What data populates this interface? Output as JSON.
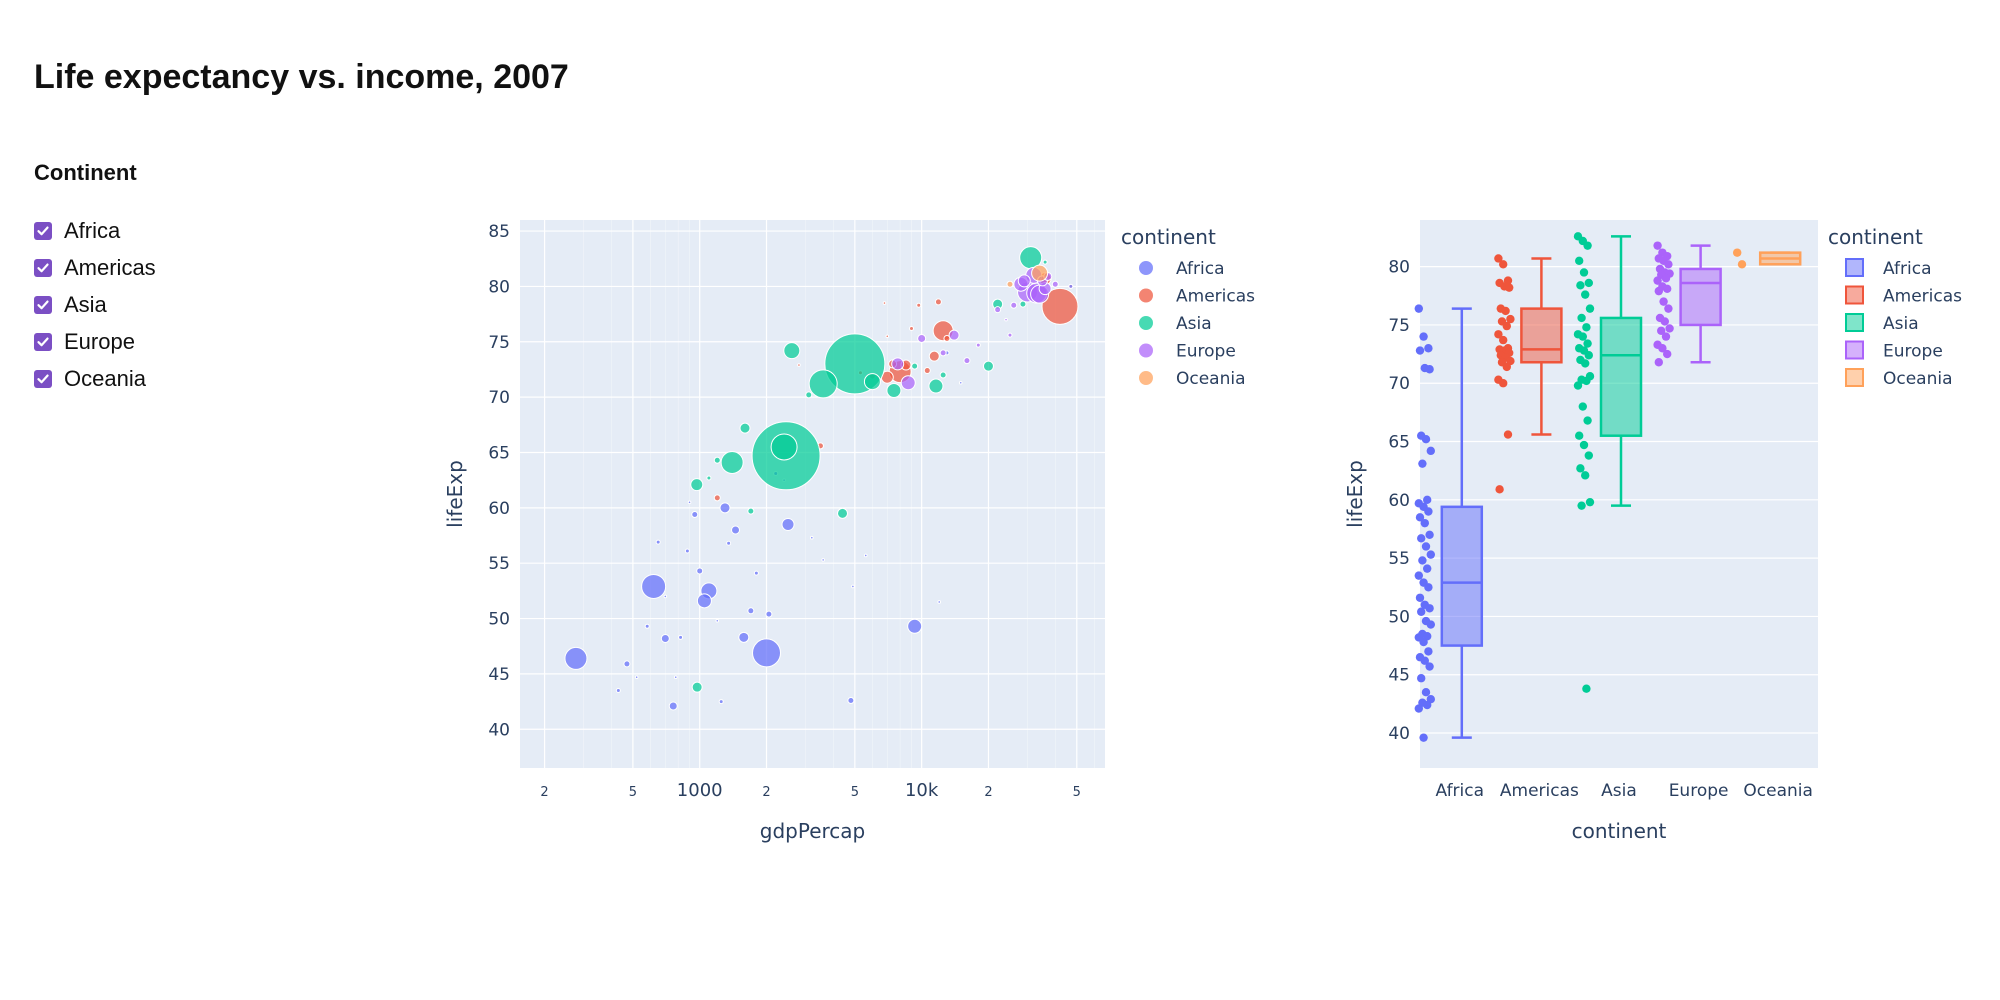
{
  "page": {
    "title": "Life expectancy vs. income, 2007"
  },
  "filter": {
    "heading": "Continent",
    "options": [
      {
        "label": "Africa",
        "checked": true
      },
      {
        "label": "Americas",
        "checked": true
      },
      {
        "label": "Asia",
        "checked": true
      },
      {
        "label": "Europe",
        "checked": true
      },
      {
        "label": "Oceania",
        "checked": true
      }
    ],
    "checkbox_color": "#7b4fc4"
  },
  "chart_data": [
    {
      "type": "scatter",
      "xlabel": "gdpPercap",
      "ylabel": "lifeExp",
      "x_scale": "log",
      "xlim": [
        155,
        67000
      ],
      "ylim": [
        36.5,
        86
      ],
      "x_ticks": [
        {
          "value": 200,
          "label": "2"
        },
        {
          "value": 500,
          "label": "5"
        },
        {
          "value": 1000,
          "label": "1000"
        },
        {
          "value": 2000,
          "label": "2"
        },
        {
          "value": 5000,
          "label": "5"
        },
        {
          "value": 10000,
          "label": "10k"
        },
        {
          "value": 20000,
          "label": "2"
        },
        {
          "value": 50000,
          "label": "5"
        }
      ],
      "y_ticks": [
        40,
        45,
        50,
        55,
        60,
        65,
        70,
        75,
        80,
        85
      ],
      "legend_title": "continent",
      "legend_position": "right",
      "grid": true,
      "series": [
        {
          "name": "Africa",
          "color": "#636efa",
          "points": [
            [
              277,
              46.4,
              11
            ],
            [
              580,
              49.3,
              2
            ],
            [
              430,
              43.5,
              2
            ],
            [
              520,
              44.7,
              1
            ],
            [
              470,
              45.9,
              3
            ],
            [
              620,
              52.9,
              12
            ],
            [
              700,
              48.2,
              4
            ],
            [
              760,
              42.1,
              4
            ],
            [
              820,
              48.3,
              2
            ],
            [
              880,
              56.1,
              2
            ],
            [
              950,
              59.4,
              3
            ],
            [
              1000,
              54.3,
              3
            ],
            [
              1050,
              51.6,
              7
            ],
            [
              1100,
              52.5,
              8
            ],
            [
              1250,
              42.5,
              2
            ],
            [
              1300,
              60.0,
              5
            ],
            [
              1350,
              56.8,
              2
            ],
            [
              1450,
              58.0,
              4
            ],
            [
              1580,
              48.3,
              5
            ],
            [
              1700,
              50.7,
              3
            ],
            [
              2000,
              46.9,
              14
            ],
            [
              2050,
              50.4,
              3
            ],
            [
              2200,
              63.1,
              2
            ],
            [
              2500,
              58.5,
              6
            ],
            [
              3600,
              55.3,
              1
            ],
            [
              4800,
              42.6,
              3
            ],
            [
              4900,
              52.9,
              1
            ],
            [
              5600,
              55.7,
              1
            ],
            [
              9300,
              49.3,
              7
            ],
            [
              12000,
              51.5,
              1
            ],
            [
              13000,
              74.0,
              2
            ],
            [
              15000,
              71.3,
              1
            ],
            [
              700,
              52.0,
              1
            ],
            [
              1200,
              49.8,
              1
            ],
            [
              1800,
              54.1,
              2
            ],
            [
              2400,
              62.5,
              1
            ],
            [
              3200,
              57.3,
              1
            ],
            [
              650,
              56.9,
              2
            ],
            [
              780,
              44.7,
              1
            ],
            [
              900,
              60.5,
              1
            ]
          ]
        },
        {
          "name": "Americas",
          "color": "#ef553b",
          "points": [
            [
              1200,
              60.9,
              3
            ],
            [
              3500,
              65.6,
              3
            ],
            [
              5300,
              72.2,
              2
            ],
            [
              6000,
              71.9,
              3
            ],
            [
              7000,
              71.8,
              6
            ],
            [
              7400,
              73.0,
              4
            ],
            [
              8000,
              72.3,
              11
            ],
            [
              8500,
              72.9,
              5
            ],
            [
              9000,
              76.2,
              2
            ],
            [
              10600,
              72.4,
              3
            ],
            [
              11400,
              73.7,
              5
            ],
            [
              12500,
              76.0,
              10
            ],
            [
              13000,
              75.3,
              3
            ],
            [
              7000,
              75.5,
              1
            ],
            [
              9700,
              78.3,
              2
            ],
            [
              11900,
              78.6,
              3
            ],
            [
              36000,
              80.7,
              6
            ],
            [
              42000,
              78.2,
              18
            ],
            [
              2800,
              72.9,
              1
            ],
            [
              6800,
              78.5,
              1
            ]
          ]
        },
        {
          "name": "Asia",
          "color": "#00cc96",
          "points": [
            [
              974,
              43.8,
              5
            ],
            [
              2450,
              64.7,
              34
            ],
            [
              5000,
              73.0,
              30
            ],
            [
              3100,
              70.2,
              3
            ],
            [
              2600,
              74.2,
              8
            ],
            [
              3600,
              71.2,
              14
            ],
            [
              1400,
              64.1,
              11
            ],
            [
              1200,
              64.3,
              3
            ],
            [
              6000,
              71.4,
              8
            ],
            [
              7500,
              70.6,
              7
            ],
            [
              11600,
              71.0,
              7
            ],
            [
              12500,
              72.0,
              3
            ],
            [
              20000,
              72.8,
              5
            ],
            [
              31000,
              82.6,
              11
            ],
            [
              28600,
              78.4,
              3
            ],
            [
              36000,
              82.2,
              2
            ],
            [
              47000,
              80.0,
              2
            ],
            [
              1600,
              67.2,
              5
            ],
            [
              970,
              62.1,
              6
            ],
            [
              1100,
              62.7,
              2
            ],
            [
              4400,
              59.5,
              5
            ],
            [
              2400,
              65.5,
              13
            ],
            [
              1700,
              59.7,
              3
            ],
            [
              9300,
              72.8,
              3
            ],
            [
              22000,
              78.4,
              5
            ]
          ]
        },
        {
          "name": "Europe",
          "color": "#ab63fa",
          "points": [
            [
              8700,
              71.3,
              7
            ],
            [
              10000,
              75.3,
              4
            ],
            [
              14000,
              75.6,
              5
            ],
            [
              16000,
              73.3,
              3
            ],
            [
              18000,
              74.7,
              2
            ],
            [
              22000,
              77.9,
              3
            ],
            [
              25000,
              75.6,
              2
            ],
            [
              26000,
              78.3,
              3
            ],
            [
              28000,
              80.2,
              7
            ],
            [
              30000,
              79.5,
              10
            ],
            [
              33000,
              79.4,
              10
            ],
            [
              35000,
              80.5,
              5
            ],
            [
              36000,
              79.8,
              6
            ],
            [
              37000,
              80.9,
              4
            ],
            [
              40000,
              80.2,
              3
            ],
            [
              47000,
              80.0,
              2
            ],
            [
              32000,
              81.0,
              8
            ],
            [
              29000,
              80.5,
              6
            ],
            [
              34000,
              79.3,
              9
            ],
            [
              12500,
              74.0,
              3
            ],
            [
              7800,
              73.0,
              6
            ],
            [
              24000,
              77.0,
              1
            ]
          ]
        },
        {
          "name": "Oceania",
          "color": "#ffa15a",
          "points": [
            [
              34000,
              81.2,
              8
            ],
            [
              25000,
              80.2,
              3
            ]
          ]
        }
      ]
    },
    {
      "type": "box",
      "xlabel": "continent",
      "ylabel": "lifeExp",
      "ylim": [
        37,
        84
      ],
      "y_ticks": [
        40,
        45,
        50,
        55,
        60,
        65,
        70,
        75,
        80
      ],
      "legend_title": "continent",
      "legend_position": "right",
      "grid": true,
      "categories": [
        "Africa",
        "Americas",
        "Asia",
        "Europe",
        "Oceania"
      ],
      "series": [
        {
          "name": "Africa",
          "color": "#636efa",
          "min": 39.6,
          "q1": 47.5,
          "median": 52.9,
          "q3": 59.4,
          "max": 76.4,
          "points": [
            76.4,
            74.0,
            73.0,
            72.8,
            71.3,
            71.2,
            65.5,
            65.2,
            64.2,
            63.1,
            60.0,
            59.7,
            59.4,
            59.0,
            58.5,
            58.0,
            57.0,
            56.7,
            56.0,
            55.3,
            54.8,
            54.1,
            53.5,
            52.9,
            52.5,
            51.6,
            51.0,
            50.7,
            50.4,
            49.6,
            49.3,
            48.5,
            48.3,
            48.2,
            47.8,
            47.0,
            46.5,
            46.2,
            45.7,
            44.7,
            43.5,
            42.9,
            42.6,
            42.4,
            42.1,
            39.6
          ]
        },
        {
          "name": "Americas",
          "color": "#ef553b",
          "min": 65.6,
          "q1": 71.8,
          "median": 72.9,
          "q3": 76.4,
          "max": 80.7,
          "points": [
            80.7,
            80.2,
            78.8,
            78.6,
            78.3,
            78.2,
            76.4,
            76.2,
            75.5,
            75.3,
            74.9,
            74.2,
            73.7,
            73.0,
            72.9,
            72.8,
            72.6,
            72.4,
            72.2,
            71.9,
            71.8,
            71.4,
            70.3,
            70.0,
            65.6,
            60.9
          ]
        },
        {
          "name": "Asia",
          "color": "#00cc96",
          "min": 59.5,
          "q1": 65.5,
          "median": 72.4,
          "q3": 75.6,
          "max": 82.6,
          "points": [
            82.6,
            82.2,
            81.8,
            80.5,
            79.5,
            78.6,
            78.4,
            77.6,
            76.4,
            75.6,
            74.8,
            74.2,
            74.0,
            73.4,
            73.0,
            72.8,
            72.4,
            72.0,
            71.7,
            70.6,
            70.3,
            70.2,
            69.8,
            68.0,
            66.8,
            65.5,
            64.7,
            63.8,
            62.7,
            62.1,
            59.8,
            59.5,
            43.8
          ]
        },
        {
          "name": "Europe",
          "color": "#ab63fa",
          "min": 71.8,
          "q1": 75.0,
          "median": 78.6,
          "q3": 79.8,
          "max": 81.8,
          "points": [
            81.8,
            81.2,
            80.9,
            80.7,
            80.5,
            80.2,
            79.8,
            79.5,
            79.4,
            79.3,
            79.0,
            78.8,
            78.3,
            78.1,
            77.9,
            77.0,
            76.4,
            75.6,
            75.3,
            74.7,
            74.5,
            74.0,
            73.3,
            73.0,
            72.5,
            71.8
          ]
        },
        {
          "name": "Oceania",
          "color": "#ffa15a",
          "min": 80.2,
          "q1": 80.2,
          "median": 80.7,
          "q3": 81.2,
          "max": 81.2,
          "points": [
            81.2,
            80.2
          ]
        }
      ]
    }
  ]
}
